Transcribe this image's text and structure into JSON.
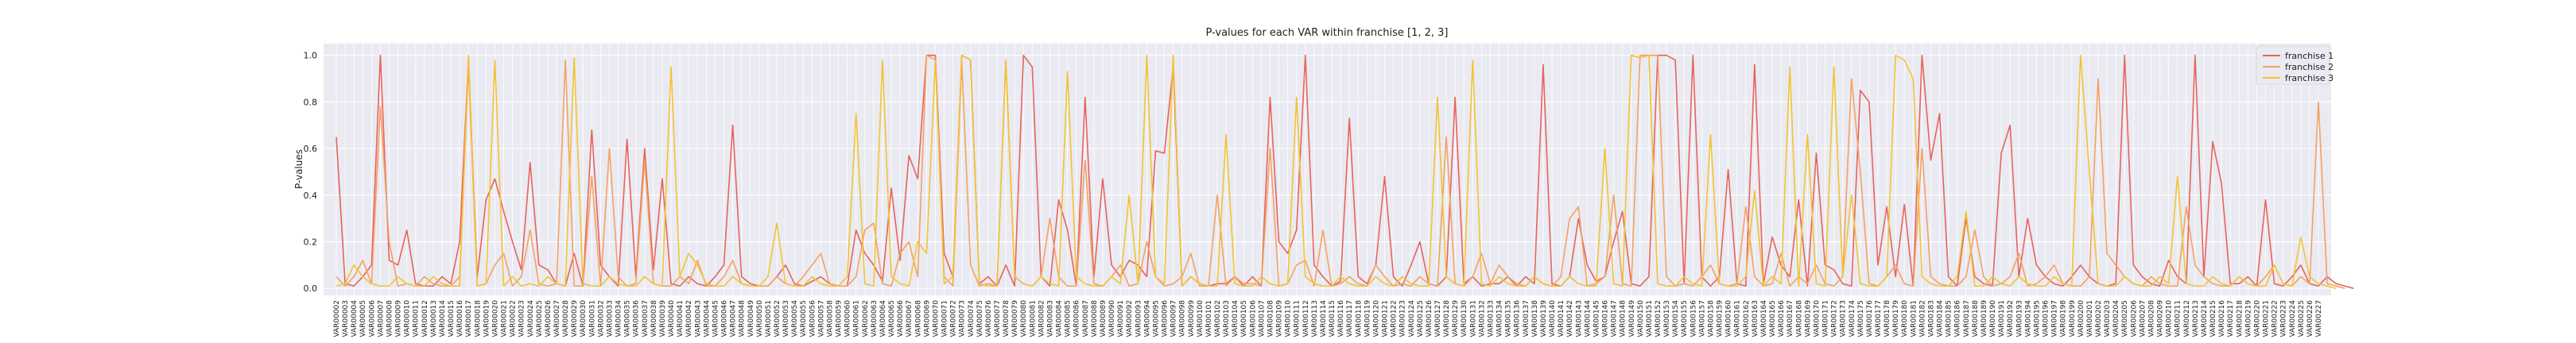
{
  "chart_data": {
    "type": "line",
    "title": "P-values for each VAR within franchise [1, 2, 3]",
    "xlabel": "",
    "ylabel": "P-values",
    "ylim": [
      -0.03,
      1.05
    ],
    "yticks": [
      "0.0",
      "0.2",
      "0.4",
      "0.6",
      "0.8",
      "1.0"
    ],
    "grid": true,
    "legend_position": "top-right",
    "x_start": 2,
    "x_end": 227,
    "x_prefix": "VAR",
    "series": [
      {
        "name": "franchise 1",
        "color": "#e8635c",
        "values": [
          0.65,
          0.02,
          0.01,
          0.05,
          0.1,
          1.0,
          0.12,
          0.1,
          0.25,
          0.02,
          0.01,
          0.01,
          0.05,
          0.02,
          0.2,
          0.98,
          0.05,
          0.38,
          0.47,
          0.33,
          0.2,
          0.08,
          0.54,
          0.1,
          0.08,
          0.02,
          0.01,
          0.15,
          0.01,
          0.68,
          0.1,
          0.05,
          0.01,
          0.64,
          0.05,
          0.6,
          0.08,
          0.47,
          0.02,
          0.01,
          0.05,
          0.02,
          0.01,
          0.05,
          0.1,
          0.7,
          0.05,
          0.02,
          0.01,
          0.01,
          0.05,
          0.1,
          0.02,
          0.01,
          0.03,
          0.05,
          0.02,
          0.01,
          0.01,
          0.25,
          0.15,
          0.1,
          0.03,
          0.43,
          0.12,
          0.57,
          0.47,
          1.0,
          1.0,
          0.15,
          0.05,
          1.0,
          0.98,
          0.02,
          0.05,
          0.01,
          0.1,
          0.01,
          1.0,
          0.95,
          0.05,
          0.01,
          0.38,
          0.25,
          0.01,
          0.82,
          0.05,
          0.47,
          0.1,
          0.05,
          0.12,
          0.1,
          0.05,
          0.59,
          0.58,
          0.95,
          0.01,
          0.05,
          0.02,
          0.01,
          0.02,
          0.02,
          0.05,
          0.01,
          0.05,
          0.01,
          0.82,
          0.2,
          0.15,
          0.25,
          1.0,
          0.1,
          0.05,
          0.01,
          0.03,
          0.73,
          0.05,
          0.02,
          0.1,
          0.48,
          0.05,
          0.01,
          0.1,
          0.2,
          0.02,
          0.01,
          0.05,
          0.82,
          0.02,
          0.05,
          0.01,
          0.02,
          0.02,
          0.05,
          0.01,
          0.05,
          0.02,
          0.96,
          0.02,
          0.01,
          0.05,
          0.3,
          0.1,
          0.03,
          0.05,
          0.2,
          0.33,
          0.02,
          0.01,
          0.05,
          1.0,
          1.0,
          0.98,
          0.02,
          1.0,
          0.05,
          0.01,
          0.05,
          0.51,
          0.02,
          0.01,
          0.96,
          0.02,
          0.22,
          0.1,
          0.05,
          0.38,
          0.01,
          0.58,
          0.1,
          0.08,
          0.02,
          0.01,
          0.85,
          0.8,
          0.1,
          0.35,
          0.05,
          0.36,
          0.01,
          1.0,
          0.55,
          0.75,
          0.05,
          0.01,
          0.3,
          0.05,
          0.02,
          0.01,
          0.58,
          0.7,
          0.05,
          0.3,
          0.1,
          0.05,
          0.02,
          0.01,
          0.05,
          0.1,
          0.05,
          0.02,
          0.01,
          0.02,
          1.0,
          0.1,
          0.05,
          0.02,
          0.01,
          0.12,
          0.05,
          0.02,
          1.0,
          0.05,
          0.63,
          0.45,
          0.02,
          0.02,
          0.05,
          0.01,
          0.38,
          0.02,
          0.01,
          0.05,
          0.1,
          0.02,
          0.01,
          0.05,
          0.02,
          0.01,
          0.0
        ]
      },
      {
        "name": "franchise 2",
        "color": "#f5a15f",
        "values": [
          0.05,
          0.01,
          0.05,
          0.12,
          0.02,
          0.78,
          0.2,
          0.01,
          0.02,
          0.01,
          0.05,
          0.02,
          0.01,
          0.01,
          0.05,
          0.95,
          0.01,
          0.02,
          0.1,
          0.15,
          0.01,
          0.05,
          0.25,
          0.02,
          0.01,
          0.02,
          0.98,
          0.01,
          0.01,
          0.48,
          0.01,
          0.6,
          0.05,
          0.01,
          0.02,
          0.55,
          0.02,
          0.01,
          0.01,
          0.05,
          0.02,
          0.12,
          0.01,
          0.01,
          0.05,
          0.12,
          0.02,
          0.01,
          0.01,
          0.01,
          0.05,
          0.02,
          0.01,
          0.05,
          0.1,
          0.15,
          0.02,
          0.01,
          0.01,
          0.05,
          0.25,
          0.28,
          0.02,
          0.01,
          0.15,
          0.2,
          0.05,
          1.0,
          0.98,
          0.05,
          0.01,
          0.97,
          0.1,
          0.01,
          0.02,
          0.01,
          0.98,
          0.05,
          0.02,
          0.01,
          0.05,
          0.3,
          0.05,
          0.01,
          0.01,
          0.55,
          0.02,
          0.01,
          0.05,
          0.1,
          0.01,
          0.02,
          0.2,
          0.05,
          0.01,
          0.02,
          0.05,
          0.15,
          0.01,
          0.01,
          0.4,
          0.01,
          0.05,
          0.02,
          0.02,
          0.01,
          0.6,
          0.01,
          0.02,
          0.1,
          0.12,
          0.01,
          0.25,
          0.01,
          0.02,
          0.05,
          0.02,
          0.01,
          0.1,
          0.05,
          0.01,
          0.02,
          0.01,
          0.05,
          0.02,
          0.01,
          0.65,
          0.02,
          0.01,
          0.05,
          0.15,
          0.02,
          0.1,
          0.05,
          0.02,
          0.01,
          0.05,
          0.02,
          0.01,
          0.05,
          0.3,
          0.35,
          0.01,
          0.02,
          0.05,
          0.4,
          0.02,
          0.01,
          1.0,
          1.0,
          1.0,
          0.05,
          0.01,
          0.02,
          0.01,
          0.05,
          0.1,
          0.02,
          0.01,
          0.02,
          0.35,
          0.05,
          0.01,
          0.02,
          0.15,
          0.01,
          0.05,
          0.02,
          0.1,
          0.02,
          0.01,
          0.05,
          0.9,
          0.5,
          0.02,
          0.01,
          0.05,
          0.1,
          0.02,
          0.01,
          0.6,
          0.05,
          0.02,
          0.01,
          0.01,
          0.05,
          0.25,
          0.05,
          0.01,
          0.02,
          0.05,
          0.15,
          0.01,
          0.02,
          0.05,
          0.1,
          0.02,
          0.01,
          0.01,
          0.05,
          0.9,
          0.15,
          0.1,
          0.05,
          0.02,
          0.01,
          0.05,
          0.02,
          0.01,
          0.01,
          0.35,
          0.1,
          0.05,
          0.02,
          0.01,
          0.01,
          0.05,
          0.02,
          0.01,
          0.05,
          0.1,
          0.02,
          0.01,
          0.05,
          0.02,
          0.8,
          0.02,
          0.01,
          0.0
        ]
      },
      {
        "name": "franchise 3",
        "color": "#f3c331",
        "values": [
          0.01,
          0.02,
          0.1,
          0.05,
          0.02,
          0.01,
          0.01,
          0.05,
          0.02,
          0.01,
          0.01,
          0.05,
          0.02,
          0.01,
          0.01,
          1.0,
          0.01,
          0.02,
          0.98,
          0.01,
          0.05,
          0.01,
          0.02,
          0.01,
          0.05,
          0.02,
          0.01,
          0.99,
          0.02,
          0.01,
          0.01,
          0.05,
          0.02,
          0.01,
          0.01,
          0.05,
          0.02,
          0.01,
          0.95,
          0.05,
          0.15,
          0.1,
          0.02,
          0.01,
          0.01,
          0.05,
          0.02,
          0.01,
          0.01,
          0.05,
          0.28,
          0.02,
          0.01,
          0.01,
          0.05,
          0.02,
          0.01,
          0.01,
          0.05,
          0.75,
          0.02,
          0.01,
          0.98,
          0.05,
          0.02,
          0.01,
          0.2,
          0.15,
          0.98,
          0.02,
          0.05,
          1.0,
          0.98,
          0.02,
          0.01,
          0.01,
          0.98,
          0.05,
          0.02,
          0.01,
          0.05,
          0.02,
          0.01,
          0.93,
          0.05,
          0.02,
          0.01,
          0.01,
          0.05,
          0.02,
          0.4,
          0.02,
          1.0,
          0.05,
          0.02,
          1.0,
          0.01,
          0.05,
          0.02,
          0.01,
          0.01,
          0.66,
          0.02,
          0.01,
          0.01,
          0.05,
          0.02,
          0.01,
          0.02,
          0.82,
          0.05,
          0.02,
          0.01,
          0.01,
          0.05,
          0.02,
          0.01,
          0.01,
          0.05,
          0.02,
          0.01,
          0.05,
          0.02,
          0.01,
          0.01,
          0.82,
          0.05,
          0.02,
          0.01,
          0.98,
          0.02,
          0.01,
          0.05,
          0.02,
          0.01,
          0.01,
          0.05,
          0.02,
          0.01,
          0.01,
          0.05,
          0.02,
          0.01,
          0.01,
          0.6,
          0.02,
          0.01,
          1.0,
          0.99,
          1.0,
          0.02,
          0.01,
          0.01,
          0.05,
          0.02,
          0.01,
          0.66,
          0.02,
          0.01,
          0.01,
          0.05,
          0.42,
          0.01,
          0.05,
          0.02,
          0.95,
          0.01,
          0.66,
          0.02,
          0.01,
          0.95,
          0.05,
          0.4,
          0.02,
          0.01,
          0.01,
          0.05,
          1.0,
          0.98,
          0.9,
          0.05,
          0.02,
          0.01,
          0.01,
          0.05,
          0.33,
          0.01,
          0.01,
          0.05,
          0.02,
          0.01,
          0.05,
          0.02,
          0.01,
          0.01,
          0.05,
          0.02,
          0.01,
          1.0,
          0.5,
          0.02,
          0.01,
          0.01,
          0.05,
          0.02,
          0.01,
          0.01,
          0.05,
          0.02,
          0.48,
          0.02,
          0.01,
          0.01,
          0.05,
          0.02,
          0.01,
          0.05,
          0.02,
          0.01,
          0.01,
          0.1,
          0.02,
          0.01,
          0.22,
          0.05,
          0.02,
          0.01,
          0.0
        ]
      }
    ]
  }
}
